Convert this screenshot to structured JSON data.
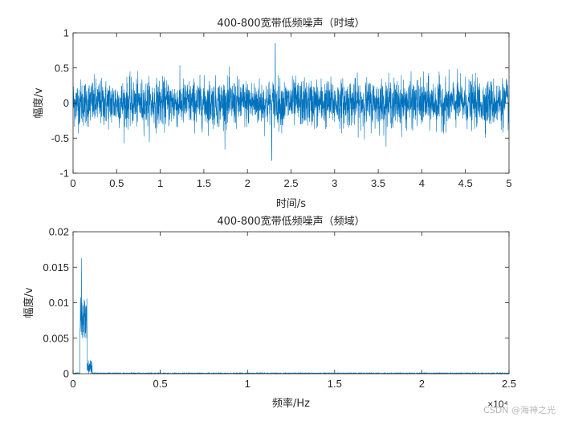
{
  "watermark": "CSDN @海神之光",
  "chart_data": [
    {
      "type": "line",
      "title": "400-800宽带低频噪声（时域）",
      "xlabel": "时间/s",
      "ylabel": "幅度/v",
      "xlim": [
        0,
        5
      ],
      "ylim": [
        -1,
        1
      ],
      "xticks": [
        0,
        0.5,
        1,
        1.5,
        2,
        2.5,
        3,
        3.5,
        4,
        4.5,
        5
      ],
      "xtick_labels": [
        "0",
        "0.5",
        "1",
        "1.5",
        "2",
        "2.5",
        "3",
        "3.5",
        "4",
        "4.5",
        "5"
      ],
      "yticks": [
        -1,
        -0.5,
        0,
        0.5,
        1
      ],
      "ytick_labels": [
        "-1",
        "-0.5",
        "0",
        "0.5",
        "1"
      ],
      "grid": false,
      "series_color": "#0072bd",
      "signal": {
        "description_of_shape": "dense band-limited noise",
        "typical_amplitude": 0.3,
        "peak_max": 0.85,
        "peak_max_at_x": 2.32,
        "peak_min": -0.82,
        "peak_min_at_x": 2.28
      }
    },
    {
      "type": "line",
      "title": "400-800宽带低频噪声（频域）",
      "xlabel": "频率/Hz",
      "ylabel": "幅度/v",
      "xlim": [
        0,
        25000
      ],
      "ylim": [
        0,
        0.02
      ],
      "xticks": [
        0,
        5000,
        10000,
        15000,
        20000,
        25000
      ],
      "xtick_labels": [
        "0",
        "0.5",
        "1",
        "1.5",
        "2",
        "2.5"
      ],
      "x_exponent": "×10⁴",
      "yticks": [
        0,
        0.005,
        0.01,
        0.015,
        0.02
      ],
      "ytick_labels": [
        "0",
        "0.005",
        "0.01",
        "0.015",
        "0.02"
      ],
      "grid": false,
      "series_color": "#0072bd",
      "spectrum": {
        "band_start_hz": 400,
        "band_end_hz": 800,
        "peak_value": 0.0163,
        "peak_at_hz": 480,
        "typical_level": 0.011
      }
    }
  ]
}
